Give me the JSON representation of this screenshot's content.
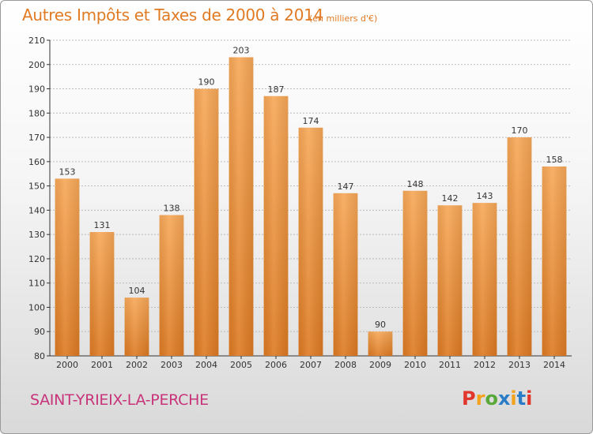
{
  "title": "Autres Impôts et Taxes de 2000 à 2014",
  "subtitle": "(en milliers d'€)",
  "commune": "SAINT-YRIEIX-LA-PERCHE",
  "logo": {
    "letters": [
      "P",
      "r",
      "o",
      "x",
      "i",
      "t",
      "i"
    ],
    "colors": [
      "#e2352b",
      "#f2a31b",
      "#59a83a",
      "#2b7cc6",
      "#f2a31b",
      "#2b7cc6",
      "#e2352b"
    ]
  },
  "colors": {
    "bar_light": "#f7a858",
    "bar_dark": "#dd7a22",
    "grid": "#bbbbbb",
    "axis": "#333333"
  },
  "chart_data": {
    "type": "bar",
    "title": "Autres Impôts et Taxes de 2000 à 2014",
    "subtitle": "(en milliers d'€)",
    "categories": [
      "2000",
      "2001",
      "2002",
      "2003",
      "2004",
      "2005",
      "2006",
      "2007",
      "2008",
      "2009",
      "2010",
      "2011",
      "2012",
      "2013",
      "2014"
    ],
    "values": [
      153,
      131,
      104,
      138,
      190,
      203,
      187,
      174,
      147,
      90,
      148,
      142,
      143,
      170,
      158
    ],
    "ylim": [
      80,
      210
    ],
    "yticks": [
      80,
      90,
      100,
      110,
      120,
      130,
      140,
      150,
      160,
      170,
      180,
      190,
      200,
      210
    ],
    "grid": true
  }
}
